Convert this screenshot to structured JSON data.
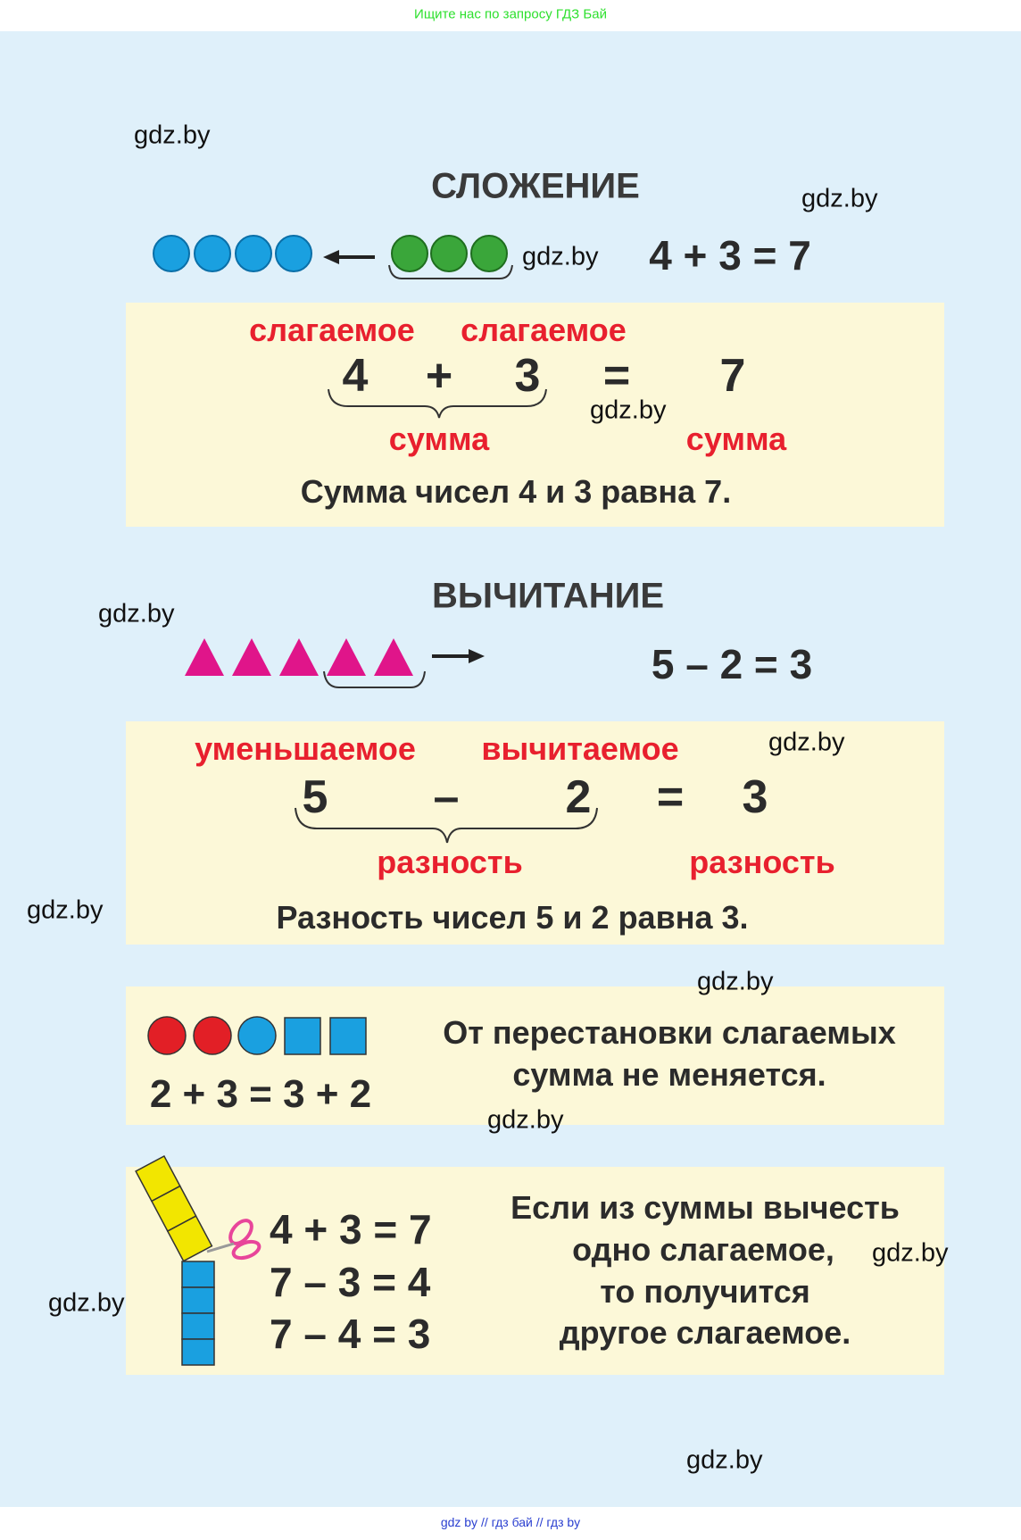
{
  "header": {
    "text": "Ищите нас по запросу ГДЗ Бай",
    "color": "#2ee02e"
  },
  "footer": {
    "text": "gdz by  //  гдз бай  //  гдз by",
    "color": "#2a3fd0"
  },
  "watermark": "gdz.by",
  "addition": {
    "title": "СЛОЖЕНИЕ",
    "example": "4 + 3 = 7",
    "term_label": "слагаемое",
    "sum_label": "сумма",
    "eq": {
      "a": "4",
      "op": "+",
      "b": "3",
      "eq": "=",
      "r": "7"
    },
    "sentence": "Сумма чисел 4 и 3 равна 7.",
    "blue_circles": 4,
    "green_circles": 3
  },
  "subtraction": {
    "title": "ВЫЧИТАНИЕ",
    "example": "5 – 2 = 3",
    "minuend_label": "уменьшаемое",
    "subtrahend_label": "вычитаемое",
    "diff_label": "разность",
    "eq": {
      "a": "5",
      "op": "–",
      "b": "2",
      "eq": "=",
      "r": "3"
    },
    "sentence": "Разность чисел 5 и 2 равна 3.",
    "triangles": 5
  },
  "commutative": {
    "equation": "2 + 3 = 3 + 2",
    "line1": "От перестановки слагаемых",
    "line2": "сумма не меняется."
  },
  "inverse": {
    "equations": [
      "4 + 3 = 7",
      "7 – 3 = 4",
      "7 – 4 = 3"
    ],
    "lines": [
      "Если из суммы вычесть",
      "одно слагаемое,",
      "то получится",
      "другое слагаемое."
    ]
  },
  "colors": {
    "background": "#dff0fa",
    "panel": "#fcf8d8",
    "label_red": "#e8202e",
    "blue": "#1aa0e0",
    "green": "#3aa63a",
    "magenta": "#e0158a",
    "red": "#e21f26",
    "yellow": "#f2e600"
  }
}
